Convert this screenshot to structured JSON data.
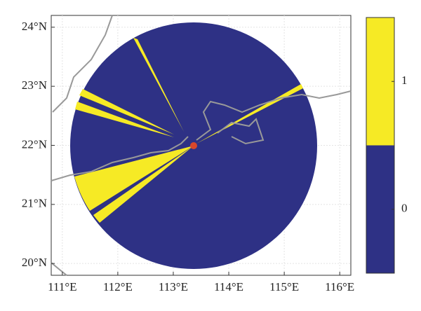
{
  "axes": {
    "xlim": [
      110.8,
      116.2
    ],
    "xticks": [
      {
        "value": 111,
        "label": "111°E"
      },
      {
        "value": 112,
        "label": "112°E"
      },
      {
        "value": 113,
        "label": "113°E"
      },
      {
        "value": 114,
        "label": "114°E"
      },
      {
        "value": 115,
        "label": "115°E"
      },
      {
        "value": 116,
        "label": "116°E"
      }
    ],
    "ylim": [
      19.8,
      24.2
    ],
    "yticks": [
      {
        "value": 20,
        "label": "20°N"
      },
      {
        "value": 21,
        "label": "21°N"
      },
      {
        "value": 22,
        "label": "22°N"
      },
      {
        "value": 23,
        "label": "23°N"
      },
      {
        "value": 24,
        "label": "24°N"
      }
    ],
    "grid": true
  },
  "colorbar": {
    "lim": [
      -0.5,
      1.5
    ],
    "ticks": [
      0,
      1
    ],
    "colors": [
      "#2e3185",
      "#f6ea25"
    ]
  }
}
